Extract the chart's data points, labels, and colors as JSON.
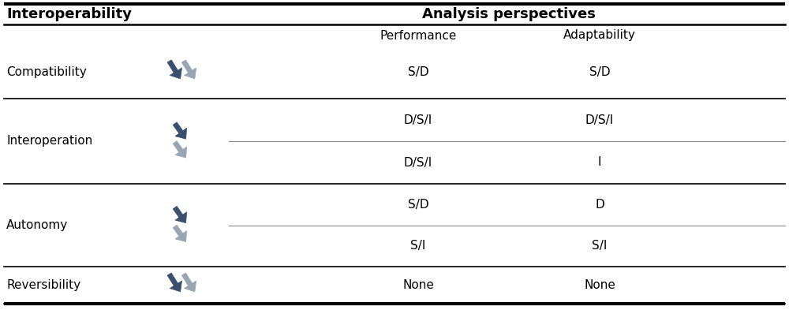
{
  "title": "Interoperability",
  "analysis_header": "Analysis perspectives",
  "col_headers": [
    "Performance",
    "Adaptability"
  ],
  "rows": [
    {
      "label": "Compatibility",
      "arrow_type": "diagonal_pair_horizontal",
      "sub_rows": [
        {
          "performance": "S/D",
          "adaptability": "S/D"
        }
      ]
    },
    {
      "label": "Interoperation",
      "arrow_type": "diagonal_pair_vertical",
      "sub_rows": [
        {
          "performance": "D/S/I",
          "adaptability": "D/S/I"
        },
        {
          "performance": "D/S/I",
          "adaptability": "I"
        }
      ]
    },
    {
      "label": "Autonomy",
      "arrow_type": "diagonal_pair_vertical",
      "sub_rows": [
        {
          "performance": "S/D",
          "adaptability": "D"
        },
        {
          "performance": "S/I",
          "adaptability": "S/I"
        }
      ]
    },
    {
      "label": "Reversibility",
      "arrow_type": "diagonal_pair_horizontal",
      "sub_rows": [
        {
          "performance": "None",
          "adaptability": "None"
        }
      ]
    }
  ],
  "bg_color": "#ffffff",
  "text_color": "#000000",
  "header_color": "#000000",
  "line_color": "#000000",
  "arrow_color_dark": "#3a4f6e",
  "arrow_color_light": "#9aa5b4",
  "font_size": 11,
  "header_font_size": 13,
  "label_font_size": 11
}
